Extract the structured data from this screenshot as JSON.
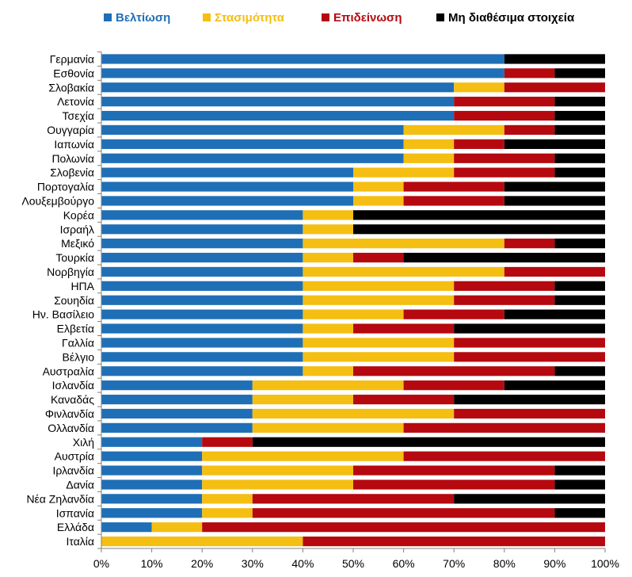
{
  "chart_data": {
    "type": "bar",
    "orientation": "horizontal",
    "stacked": true,
    "title": "",
    "xlabel": "",
    "ylabel": "",
    "xlim": [
      0,
      100
    ],
    "x_ticks": [
      "0%",
      "10%",
      "20%",
      "30%",
      "40%",
      "50%",
      "60%",
      "70%",
      "80%",
      "90%",
      "100%"
    ],
    "grid": false,
    "legend_position": "top",
    "categories": [
      "Γερμανία",
      "Εσθονία",
      "Σλοβακία",
      "Λετονία",
      "Τσεχία",
      "Ουγγαρία",
      "Ιαπωνία",
      "Πολωνία",
      "Σλοβενία",
      "Πορτογαλία",
      "Λουξεμβούργο",
      "Κορέα",
      "Ισραήλ",
      "Μεξικό",
      "Τουρκία",
      "Νορβηγία",
      "ΗΠΑ",
      "Σουηδία",
      "Ην. Βασίλειο",
      "Ελβετία",
      "Γαλλία",
      "Βέλγιο",
      "Αυστραλία",
      "Ισλανδία",
      "Καναδάς",
      "Φινλανδία",
      "Ολλανδία",
      "Χιλή",
      "Αυστρία",
      "Ιρλανδία",
      "Δανία",
      "Νέα Ζηλανδία",
      "Ισπανία",
      "Ελλάδα",
      "Ιταλία"
    ],
    "series": [
      {
        "name": "Βελτίωση",
        "color": "#1F6FB6",
        "values": [
          80,
          80,
          70,
          70,
          70,
          60,
          60,
          60,
          50,
          50,
          50,
          40,
          40,
          40,
          40,
          40,
          40,
          40,
          40,
          40,
          40,
          40,
          40,
          30,
          30,
          30,
          30,
          20,
          20,
          20,
          20,
          20,
          20,
          10,
          0
        ]
      },
      {
        "name": "Στασιμότητα",
        "color": "#F5BE12",
        "values": [
          0,
          0,
          10,
          0,
          0,
          20,
          10,
          10,
          20,
          10,
          10,
          10,
          10,
          40,
          10,
          40,
          30,
          30,
          20,
          10,
          30,
          30,
          10,
          30,
          20,
          40,
          30,
          0,
          40,
          30,
          30,
          10,
          10,
          10,
          40
        ]
      },
      {
        "name": "Επιδείνωση",
        "color": "#B5090F",
        "values": [
          0,
          10,
          20,
          20,
          20,
          10,
          10,
          20,
          20,
          20,
          20,
          0,
          0,
          10,
          10,
          20,
          20,
          20,
          20,
          20,
          30,
          30,
          40,
          20,
          20,
          30,
          40,
          10,
          40,
          40,
          40,
          40,
          60,
          80,
          60
        ]
      },
      {
        "name": "Μη διαθέσιμα στοιχεία",
        "color": "#000000",
        "values": [
          20,
          10,
          0,
          10,
          10,
          10,
          20,
          10,
          10,
          20,
          20,
          50,
          50,
          10,
          40,
          0,
          10,
          10,
          20,
          30,
          0,
          0,
          10,
          20,
          30,
          0,
          0,
          70,
          0,
          10,
          10,
          30,
          10,
          0,
          0
        ]
      }
    ]
  }
}
